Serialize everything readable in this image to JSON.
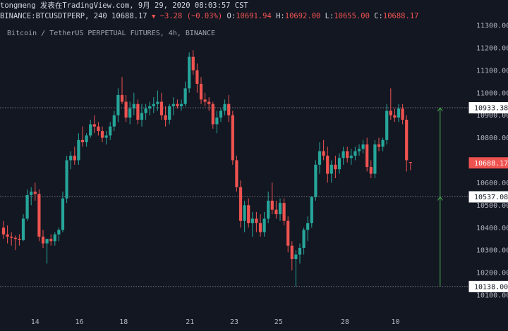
{
  "header": {
    "line1": "tongmeng 发表在TradingView.com, 9月 29, 2020 08:03:57 CST",
    "symbol": "BINANCE:BTCUSDTPERP, 240",
    "price": "10688.17",
    "change": "−3.28 (−0.03%)",
    "o_label": "O:",
    "o_val": "10691.94",
    "h_label": "H:",
    "h_val": "10692.00",
    "l_label": "L:",
    "l_val": "10655.00",
    "c_label": "C:",
    "c_val": "10688.17"
  },
  "subtitle": "Bitcoin / TetherUS PERPETUAL FUTURES, 4h, BINANCE",
  "colors": {
    "background": "#131722",
    "up": "#26a69a",
    "down": "#ef5350",
    "text": "#d1d4dc",
    "axis_text": "#b2b5be",
    "measure_line": "#4caf50",
    "dotted_line": "#9598a1"
  },
  "chart_data": {
    "type": "candlestick",
    "ylim": [
      10100,
      11320
    ],
    "y_ticks": [
      10100,
      10200,
      10300,
      10400,
      10500,
      10600,
      10700,
      10800,
      10900,
      11000,
      11100,
      11200,
      11300
    ],
    "y_tick_labels": [
      "10100.00",
      "10200.00",
      "10300.00",
      "10400.00",
      "10500.00",
      "10600.00",
      "10700.00",
      "10800.00",
      "10900.00",
      "11000.00",
      "11100.00",
      "11200.00",
      "11300.00"
    ],
    "x_ticks": [
      "14",
      "16",
      "18",
      "21",
      "23",
      "25",
      "28",
      "10"
    ],
    "x_tick_positions": [
      8,
      19.2,
      30.4,
      47.2,
      58.4,
      69.6,
      86.4,
      99.2
    ],
    "grid": false,
    "horizontal_lines": [
      {
        "price": 10933.38,
        "label": "10933.38"
      },
      {
        "price": 10537.08,
        "label": "10537.08"
      },
      {
        "price": 10138.0,
        "label": "10138.00"
      }
    ],
    "last_price": {
      "price": 10688.17,
      "label": "10688.17"
    },
    "measure": {
      "from": 10138.0,
      "to": 10933.38,
      "x_index": 110.5
    },
    "candles": [
      {
        "o": 10400,
        "h": 10430,
        "l": 10350,
        "c": 10370
      },
      {
        "o": 10370,
        "h": 10410,
        "l": 10330,
        "c": 10360
      },
      {
        "o": 10360,
        "h": 10380,
        "l": 10320,
        "c": 10355
      },
      {
        "o": 10355,
        "h": 10365,
        "l": 10300,
        "c": 10350
      },
      {
        "o": 10350,
        "h": 10370,
        "l": 10320,
        "c": 10345
      },
      {
        "o": 10345,
        "h": 10460,
        "l": 10340,
        "c": 10440
      },
      {
        "o": 10440,
        "h": 10570,
        "l": 10430,
        "c": 10545
      },
      {
        "o": 10545,
        "h": 10580,
        "l": 10500,
        "c": 10560
      },
      {
        "o": 10560,
        "h": 10600,
        "l": 10520,
        "c": 10550
      },
      {
        "o": 10550,
        "h": 10570,
        "l": 10340,
        "c": 10360
      },
      {
        "o": 10360,
        "h": 10390,
        "l": 10310,
        "c": 10330
      },
      {
        "o": 10330,
        "h": 10350,
        "l": 10240,
        "c": 10350
      },
      {
        "o": 10350,
        "h": 10370,
        "l": 10320,
        "c": 10340
      },
      {
        "o": 10340,
        "h": 10380,
        "l": 10320,
        "c": 10370
      },
      {
        "o": 10370,
        "h": 10400,
        "l": 10340,
        "c": 10390
      },
      {
        "o": 10390,
        "h": 10560,
        "l": 10380,
        "c": 10530
      },
      {
        "o": 10530,
        "h": 10720,
        "l": 10510,
        "c": 10700
      },
      {
        "o": 10700,
        "h": 10740,
        "l": 10660,
        "c": 10720
      },
      {
        "o": 10720,
        "h": 10760,
        "l": 10680,
        "c": 10700
      },
      {
        "o": 10700,
        "h": 10820,
        "l": 10680,
        "c": 10790
      },
      {
        "o": 10790,
        "h": 10850,
        "l": 10760,
        "c": 10780
      },
      {
        "o": 10780,
        "h": 10820,
        "l": 10760,
        "c": 10810
      },
      {
        "o": 10810,
        "h": 10880,
        "l": 10800,
        "c": 10860
      },
      {
        "o": 10860,
        "h": 10900,
        "l": 10820,
        "c": 10850
      },
      {
        "o": 10850,
        "h": 10870,
        "l": 10810,
        "c": 10830
      },
      {
        "o": 10830,
        "h": 10850,
        "l": 10780,
        "c": 10800
      },
      {
        "o": 10800,
        "h": 10830,
        "l": 10770,
        "c": 10810
      },
      {
        "o": 10810,
        "h": 10870,
        "l": 10790,
        "c": 10850
      },
      {
        "o": 10850,
        "h": 10920,
        "l": 10830,
        "c": 10900
      },
      {
        "o": 10900,
        "h": 11020,
        "l": 10870,
        "c": 10990
      },
      {
        "o": 10990,
        "h": 11070,
        "l": 10950,
        "c": 10960
      },
      {
        "o": 10960,
        "h": 10990,
        "l": 10870,
        "c": 10890
      },
      {
        "o": 10890,
        "h": 10960,
        "l": 10860,
        "c": 10930
      },
      {
        "o": 10930,
        "h": 11000,
        "l": 10900,
        "c": 10950
      },
      {
        "o": 10950,
        "h": 10970,
        "l": 10860,
        "c": 10880
      },
      {
        "o": 10880,
        "h": 10950,
        "l": 10850,
        "c": 10910
      },
      {
        "o": 10910,
        "h": 10950,
        "l": 10880,
        "c": 10930
      },
      {
        "o": 10930,
        "h": 10960,
        "l": 10900,
        "c": 10940
      },
      {
        "o": 10940,
        "h": 10980,
        "l": 10910,
        "c": 10950
      },
      {
        "o": 10950,
        "h": 11010,
        "l": 10920,
        "c": 10960
      },
      {
        "o": 10960,
        "h": 11000,
        "l": 10880,
        "c": 10900
      },
      {
        "o": 10900,
        "h": 10940,
        "l": 10850,
        "c": 10880
      },
      {
        "o": 10880,
        "h": 10950,
        "l": 10860,
        "c": 10940
      },
      {
        "o": 10940,
        "h": 10980,
        "l": 10900,
        "c": 10950
      },
      {
        "o": 10950,
        "h": 10970,
        "l": 10930,
        "c": 10940
      },
      {
        "o": 10940,
        "h": 10970,
        "l": 10920,
        "c": 10950
      },
      {
        "o": 10950,
        "h": 11050,
        "l": 10940,
        "c": 11020
      },
      {
        "o": 11020,
        "h": 11180,
        "l": 11000,
        "c": 11160
      },
      {
        "o": 11160,
        "h": 11190,
        "l": 11080,
        "c": 11100
      },
      {
        "o": 11100,
        "h": 11130,
        "l": 11000,
        "c": 11040
      },
      {
        "o": 11040,
        "h": 11070,
        "l": 10950,
        "c": 10970
      },
      {
        "o": 10970,
        "h": 11000,
        "l": 10940,
        "c": 10960
      },
      {
        "o": 10960,
        "h": 10980,
        "l": 10920,
        "c": 10950
      },
      {
        "o": 10950,
        "h": 10960,
        "l": 10840,
        "c": 10860
      },
      {
        "o": 10860,
        "h": 10920,
        "l": 10820,
        "c": 10890
      },
      {
        "o": 10890,
        "h": 10930,
        "l": 10870,
        "c": 10920
      },
      {
        "o": 10920,
        "h": 10970,
        "l": 10900,
        "c": 10950
      },
      {
        "o": 10950,
        "h": 10990,
        "l": 10870,
        "c": 10900
      },
      {
        "o": 10900,
        "h": 10920,
        "l": 10680,
        "c": 10700
      },
      {
        "o": 10700,
        "h": 10720,
        "l": 10560,
        "c": 10580
      },
      {
        "o": 10580,
        "h": 10610,
        "l": 10400,
        "c": 10430
      },
      {
        "o": 10430,
        "h": 10520,
        "l": 10380,
        "c": 10500
      },
      {
        "o": 10500,
        "h": 10530,
        "l": 10400,
        "c": 10420
      },
      {
        "o": 10420,
        "h": 10470,
        "l": 10360,
        "c": 10440
      },
      {
        "o": 10440,
        "h": 10470,
        "l": 10380,
        "c": 10420
      },
      {
        "o": 10420,
        "h": 10460,
        "l": 10360,
        "c": 10380
      },
      {
        "o": 10380,
        "h": 10470,
        "l": 10360,
        "c": 10440
      },
      {
        "o": 10440,
        "h": 10560,
        "l": 10420,
        "c": 10520
      },
      {
        "o": 10520,
        "h": 10600,
        "l": 10460,
        "c": 10480
      },
      {
        "o": 10480,
        "h": 10520,
        "l": 10440,
        "c": 10460
      },
      {
        "o": 10460,
        "h": 10530,
        "l": 10430,
        "c": 10510
      },
      {
        "o": 10510,
        "h": 10530,
        "l": 10410,
        "c": 10430
      },
      {
        "o": 10430,
        "h": 10450,
        "l": 10290,
        "c": 10320
      },
      {
        "o": 10320,
        "h": 10340,
        "l": 10210,
        "c": 10260
      },
      {
        "o": 10260,
        "h": 10300,
        "l": 10138,
        "c": 10280
      },
      {
        "o": 10280,
        "h": 10330,
        "l": 10240,
        "c": 10310
      },
      {
        "o": 10310,
        "h": 10400,
        "l": 10280,
        "c": 10390
      },
      {
        "o": 10390,
        "h": 10450,
        "l": 10340,
        "c": 10420
      },
      {
        "o": 10420,
        "h": 10540,
        "l": 10400,
        "c": 10537
      },
      {
        "o": 10537,
        "h": 10700,
        "l": 10520,
        "c": 10680
      },
      {
        "o": 10680,
        "h": 10780,
        "l": 10640,
        "c": 10740
      },
      {
        "o": 10740,
        "h": 10790,
        "l": 10700,
        "c": 10720
      },
      {
        "o": 10720,
        "h": 10760,
        "l": 10600,
        "c": 10640
      },
      {
        "o": 10640,
        "h": 10700,
        "l": 10600,
        "c": 10680
      },
      {
        "o": 10680,
        "h": 10720,
        "l": 10620,
        "c": 10660
      },
      {
        "o": 10660,
        "h": 10730,
        "l": 10640,
        "c": 10710
      },
      {
        "o": 10710,
        "h": 10760,
        "l": 10680,
        "c": 10740
      },
      {
        "o": 10740,
        "h": 10760,
        "l": 10690,
        "c": 10710
      },
      {
        "o": 10710,
        "h": 10750,
        "l": 10680,
        "c": 10720
      },
      {
        "o": 10720,
        "h": 10760,
        "l": 10700,
        "c": 10740
      },
      {
        "o": 10740,
        "h": 10770,
        "l": 10720,
        "c": 10750
      },
      {
        "o": 10750,
        "h": 10790,
        "l": 10730,
        "c": 10770
      },
      {
        "o": 10770,
        "h": 10800,
        "l": 10650,
        "c": 10670
      },
      {
        "o": 10670,
        "h": 10700,
        "l": 10620,
        "c": 10640
      },
      {
        "o": 10640,
        "h": 10790,
        "l": 10620,
        "c": 10770
      },
      {
        "o": 10770,
        "h": 10800,
        "l": 10740,
        "c": 10760
      },
      {
        "o": 10760,
        "h": 10800,
        "l": 10740,
        "c": 10790
      },
      {
        "o": 10790,
        "h": 10950,
        "l": 10770,
        "c": 10920
      },
      {
        "o": 10920,
        "h": 11020,
        "l": 10880,
        "c": 10900
      },
      {
        "o": 10900,
        "h": 10930,
        "l": 10870,
        "c": 10890
      },
      {
        "o": 10890,
        "h": 10950,
        "l": 10870,
        "c": 10930
      },
      {
        "o": 10930,
        "h": 10950,
        "l": 10860,
        "c": 10880
      },
      {
        "o": 10880,
        "h": 10900,
        "l": 10650,
        "c": 10700
      },
      {
        "o": 10691.94,
        "h": 10692,
        "l": 10655,
        "c": 10688.17
      }
    ]
  }
}
